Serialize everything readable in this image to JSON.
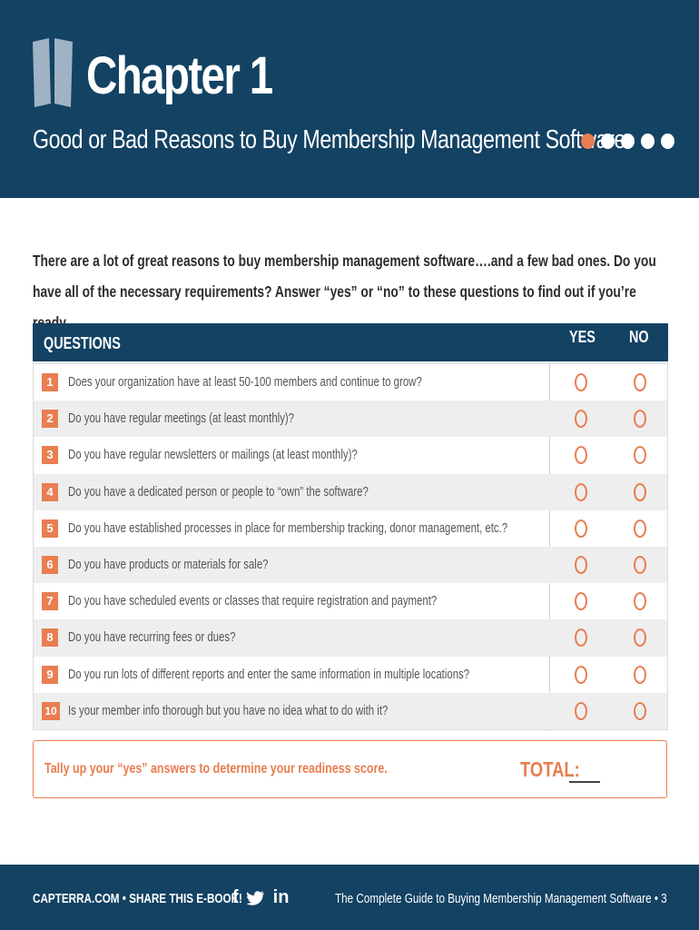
{
  "header": {
    "chapter_title": "Chapter 1",
    "subtitle": "Good or Bad Reasons to Buy Membership Management Software",
    "progress_dots": 5,
    "active_dot": 1,
    "accent_color": "#e87e51",
    "brand_color": "#134263"
  },
  "intro": {
    "text": "There are a lot of great reasons to buy membership management software….and a few bad ones. Do you have all of the necessary requirements? Answer “yes” or “no” to these questions to find out if you’re ready…."
  },
  "table": {
    "header_label": "QUESTIONS",
    "yes_label": "YES",
    "no_label": "NO",
    "rows": [
      {
        "num": "1",
        "question": "Does your organization have at least 50-100 members and continue to grow?"
      },
      {
        "num": "2",
        "question": "Do you have regular meetings (at least monthly)?"
      },
      {
        "num": "3",
        "question": "Do you have regular newsletters or mailings (at least monthly)?"
      },
      {
        "num": "4",
        "question": "Do you have a dedicated person or people to “own” the software?"
      },
      {
        "num": "5",
        "question": "Do you have established processes in place for membership tracking, donor management, etc.?"
      },
      {
        "num": "6",
        "question": "Do you have products or materials for sale?"
      },
      {
        "num": "7",
        "question": "Do you have scheduled events or classes that require registration and payment?"
      },
      {
        "num": "8",
        "question": "Do you have recurring fees or dues?"
      },
      {
        "num": "9",
        "question": "Do you run lots of different reports and enter the same information in multiple locations?"
      },
      {
        "num": "10",
        "question": "Is your member info thorough but you have no idea what to do with it?"
      }
    ]
  },
  "tally": {
    "instruction": "Tally up your “yes” answers to determine your readiness score.",
    "total_label": "TOTAL:"
  },
  "footer": {
    "left_text": "CAPTERRA.COM • SHARE THIS E-BOOK!",
    "social_icons": [
      "facebook-icon",
      "twitter-icon",
      "linkedin-icon"
    ],
    "facebook_glyph": "f",
    "linkedin_glyph": "in",
    "right_text": "The Complete Guide to Buying Membership Management Software • 3"
  }
}
